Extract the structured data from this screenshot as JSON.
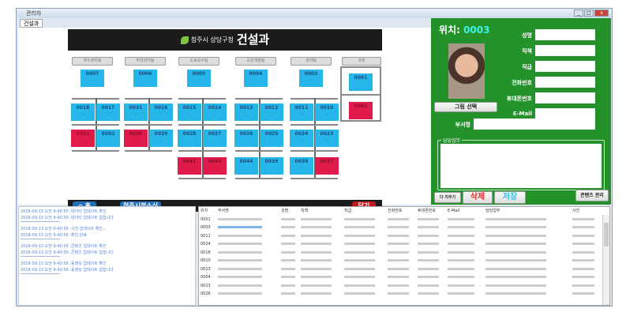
{
  "window": {
    "title": "관리자",
    "tab": "건설과"
  },
  "header": {
    "sub": "청주시 상당구청",
    "title": "건설과"
  },
  "groups": [
    {
      "label": "하수관리팀",
      "top": {
        "id": "0007",
        "red": false
      },
      "rows": [
        [
          [
            "0018",
            false
          ],
          [
            "0017",
            false
          ]
        ],
        [
          [
            "0032",
            true
          ],
          [
            "0052",
            false
          ]
        ]
      ]
    },
    {
      "label": "하천관리팀",
      "top": {
        "id": "0006",
        "red": false
      },
      "rows": [
        [
          [
            "0031",
            false
          ],
          [
            "0016",
            false
          ]
        ],
        [
          [
            "0030",
            true
          ],
          [
            "0029",
            false
          ]
        ]
      ]
    },
    {
      "label": "도로보수팀",
      "top": {
        "id": "0005",
        "red": false
      },
      "rows": [
        [
          [
            "0015",
            false
          ],
          [
            "0014",
            false
          ]
        ],
        [
          [
            "0028",
            false
          ],
          [
            "0027",
            false
          ]
        ],
        [
          [
            "0041",
            true
          ],
          [
            "0040",
            true
          ]
        ]
      ]
    },
    {
      "label": "공원개발팀",
      "top": {
        "id": "0004",
        "red": false
      },
      "rows": [
        [
          [
            "0013",
            false
          ],
          [
            "0012",
            false
          ]
        ],
        [
          [
            "0026",
            false
          ],
          [
            "0025",
            false
          ]
        ],
        [
          [
            "0044",
            false
          ],
          [
            "0039",
            false
          ]
        ]
      ]
    },
    {
      "label": "관리팀",
      "top": {
        "id": "0003",
        "red": false
      },
      "rows": [
        [
          [
            "0011",
            false
          ],
          [
            "0010",
            false
          ]
        ],
        [
          [
            "0024",
            false
          ],
          [
            "0023",
            false
          ]
        ],
        [
          [
            "0038",
            false
          ],
          [
            "0037",
            true
          ]
        ]
      ]
    }
  ],
  "chief": {
    "label": "과장",
    "cards": [
      {
        "id": "0001",
        "red": false
      },
      {
        "id": "0002",
        "red": true
      }
    ]
  },
  "bottombar": {
    "home": "⌂ 홈",
    "news": "청주시정소식",
    "close": "닫기"
  },
  "panel": {
    "loc_label": "위치:",
    "loc_value": "0003",
    "select_photo": "그림 선택",
    "fields": [
      {
        "label": "성명"
      },
      {
        "label": "직책"
      },
      {
        "label": "직급"
      },
      {
        "label": "전화번호"
      },
      {
        "label": "휴대폰번호"
      },
      {
        "label": "E-Mail"
      }
    ],
    "dept_label": "부서명",
    "duty_label": "담당업무",
    "clear": "다 지우기",
    "delete": "삭제",
    "save": "저장",
    "contents": "콘텐츠 관리"
  },
  "log": [
    [
      "2018-09-13 오전 9:40:55 :데이터 업데이트 확인",
      "2018-09-13 오전 9:40:56 :데이터 업데이트 없습니다"
    ],
    [
      "2018-09-13 오전 9:40:56 :사진 업데이트 확인...",
      "2018-09-13 오전 9:40:56 :확인 완료"
    ],
    [
      "2018-09-13 오전 9:40:56 :콘텐츠 업데이트 확인",
      "2018-09-13 오전 9:40:56 :콘텐츠 업데이트 없습니다"
    ],
    [
      "2018-09-13 오전 9:40:56 :동영상 업데이트 확인",
      "2018-09-13 오전 9:40:56 :동영상 업데이트 없습니다"
    ]
  ],
  "table": {
    "columns": [
      "위치",
      "부서명",
      "성명",
      "직책",
      "직급",
      "전화번호",
      "휴대폰번호",
      "E-Mail",
      "담당업무",
      "사진"
    ],
    "rows": [
      "0001",
      "0003",
      "0011",
      "0024",
      "0018",
      "0010",
      "0023",
      "0004",
      "0013",
      "0026"
    ]
  },
  "colors": {
    "panel": "#24922b",
    "card": "#27b6ea",
    "card_red": "#e01b4c",
    "loc": "#3ef3e6"
  }
}
